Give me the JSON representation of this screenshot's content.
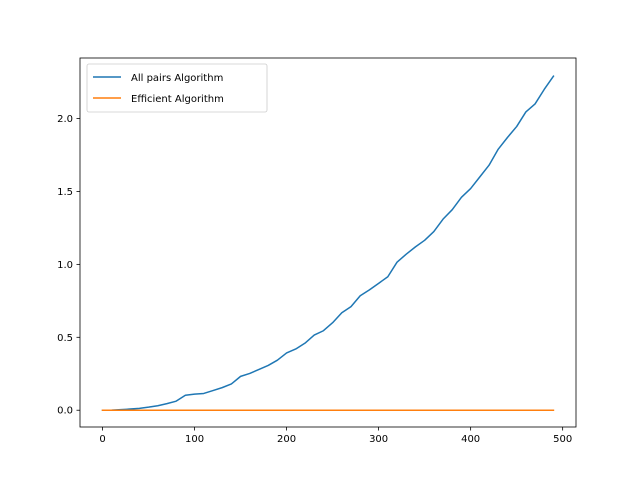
{
  "chart_data": {
    "type": "line",
    "title": "",
    "xlabel": "",
    "ylabel": "",
    "xlim": [
      -24.5,
      514.5
    ],
    "ylim": [
      -0.115,
      2.415
    ],
    "xticks": [
      0,
      100,
      200,
      300,
      400,
      500
    ],
    "xtick_labels": [
      "0",
      "100",
      "200",
      "300",
      "400",
      "500"
    ],
    "yticks": [
      0.0,
      0.5,
      1.0,
      1.5,
      2.0
    ],
    "ytick_labels": [
      "0.0",
      "0.5",
      "1.0",
      "1.5",
      "2.0"
    ],
    "grid": false,
    "legend_position": "upper-left",
    "x": [
      0,
      10,
      20,
      30,
      40,
      50,
      60,
      70,
      80,
      90,
      100,
      110,
      120,
      130,
      140,
      150,
      160,
      170,
      180,
      190,
      200,
      210,
      220,
      230,
      240,
      250,
      260,
      270,
      280,
      290,
      300,
      310,
      320,
      330,
      340,
      350,
      360,
      370,
      380,
      390,
      400,
      410,
      420,
      430,
      440,
      450,
      460,
      470,
      480,
      490
    ],
    "series": [
      {
        "name": "All pairs Algorithm",
        "color": "#1f77b4",
        "values": [
          0.0,
          0.001,
          0.004,
          0.008,
          0.013,
          0.021,
          0.031,
          0.045,
          0.062,
          0.103,
          0.11,
          0.115,
          0.135,
          0.155,
          0.18,
          0.232,
          0.252,
          0.28,
          0.307,
          0.343,
          0.393,
          0.42,
          0.46,
          0.515,
          0.545,
          0.6,
          0.668,
          0.71,
          0.785,
          0.825,
          0.87,
          0.915,
          1.015,
          1.07,
          1.12,
          1.165,
          1.225,
          1.31,
          1.375,
          1.46,
          1.52,
          1.6,
          1.68,
          1.79,
          1.87,
          1.945,
          2.045,
          2.1,
          2.2,
          2.29
        ]
      },
      {
        "name": "Efficient Algorithm",
        "color": "#ff7f0e",
        "values": [
          0,
          0,
          0,
          0,
          0,
          0,
          0,
          0,
          0,
          0,
          0,
          0,
          0,
          0,
          0,
          0,
          0,
          0,
          0,
          0,
          0,
          0,
          0,
          0,
          0,
          0,
          0,
          0,
          0,
          0,
          0,
          0,
          0,
          0,
          0,
          0,
          0,
          0,
          0,
          0,
          0,
          0,
          0,
          0,
          0,
          0,
          0,
          0,
          0,
          0
        ]
      }
    ]
  }
}
